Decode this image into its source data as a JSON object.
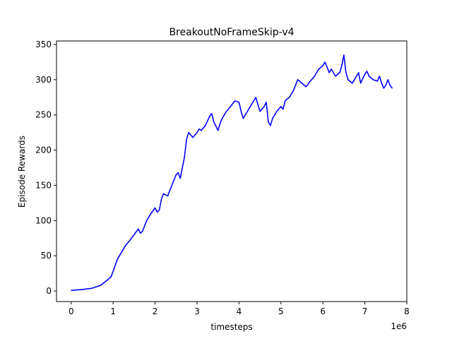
{
  "chart_data": {
    "type": "line",
    "title": "BreakoutNoFrameSkip-v4",
    "xlabel": "timesteps",
    "ylabel": "Episode Rewards",
    "x_offset_label": "1e6",
    "x_tick_labels": [
      "0",
      "1",
      "2",
      "3",
      "4",
      "5",
      "6",
      "7",
      "8"
    ],
    "y_tick_labels": [
      "0",
      "50",
      "100",
      "150",
      "200",
      "250",
      "300",
      "350"
    ],
    "xlim": [
      -0.35,
      8.0
    ],
    "ylim": [
      -15,
      355
    ],
    "grid": false,
    "legend": "none",
    "series": [
      {
        "color": "#0000ff",
        "x": [
          0.0,
          0.25,
          0.5,
          0.7,
          0.85,
          0.95,
          1.0,
          1.1,
          1.2,
          1.3,
          1.4,
          1.5,
          1.6,
          1.65,
          1.7,
          1.8,
          1.9,
          2.0,
          2.05,
          2.1,
          2.15,
          2.2,
          2.3,
          2.4,
          2.5,
          2.55,
          2.6,
          2.65,
          2.7,
          2.75,
          2.8,
          2.9,
          3.0,
          3.05,
          3.1,
          3.2,
          3.3,
          3.35,
          3.4,
          3.5,
          3.55,
          3.6,
          3.7,
          3.8,
          3.9,
          4.0,
          4.05,
          4.1,
          4.2,
          4.3,
          4.4,
          4.5,
          4.6,
          4.65,
          4.7,
          4.75,
          4.8,
          4.9,
          5.0,
          5.05,
          5.1,
          5.2,
          5.3,
          5.4,
          5.5,
          5.6,
          5.7,
          5.8,
          5.9,
          6.0,
          6.05,
          6.1,
          6.15,
          6.2,
          6.3,
          6.4,
          6.45,
          6.5,
          6.55,
          6.6,
          6.7,
          6.8,
          6.85,
          6.9,
          7.0,
          7.05,
          7.1,
          7.2,
          7.3,
          7.35,
          7.4,
          7.45,
          7.5,
          7.55,
          7.6,
          7.65
        ],
        "values": [
          1,
          2,
          4,
          8,
          15,
          20,
          28,
          45,
          55,
          65,
          72,
          80,
          88,
          82,
          85,
          100,
          110,
          118,
          112,
          115,
          130,
          138,
          135,
          150,
          165,
          168,
          160,
          175,
          190,
          215,
          225,
          218,
          225,
          230,
          228,
          235,
          248,
          252,
          240,
          228,
          238,
          245,
          255,
          262,
          270,
          268,
          255,
          245,
          255,
          265,
          275,
          255,
          262,
          268,
          240,
          235,
          245,
          255,
          262,
          258,
          270,
          275,
          285,
          300,
          295,
          290,
          298,
          305,
          315,
          320,
          325,
          318,
          310,
          315,
          305,
          310,
          320,
          335,
          310,
          300,
          295,
          305,
          310,
          295,
          308,
          312,
          305,
          300,
          298,
          305,
          295,
          288,
          292,
          300,
          292,
          288
        ]
      }
    ]
  }
}
